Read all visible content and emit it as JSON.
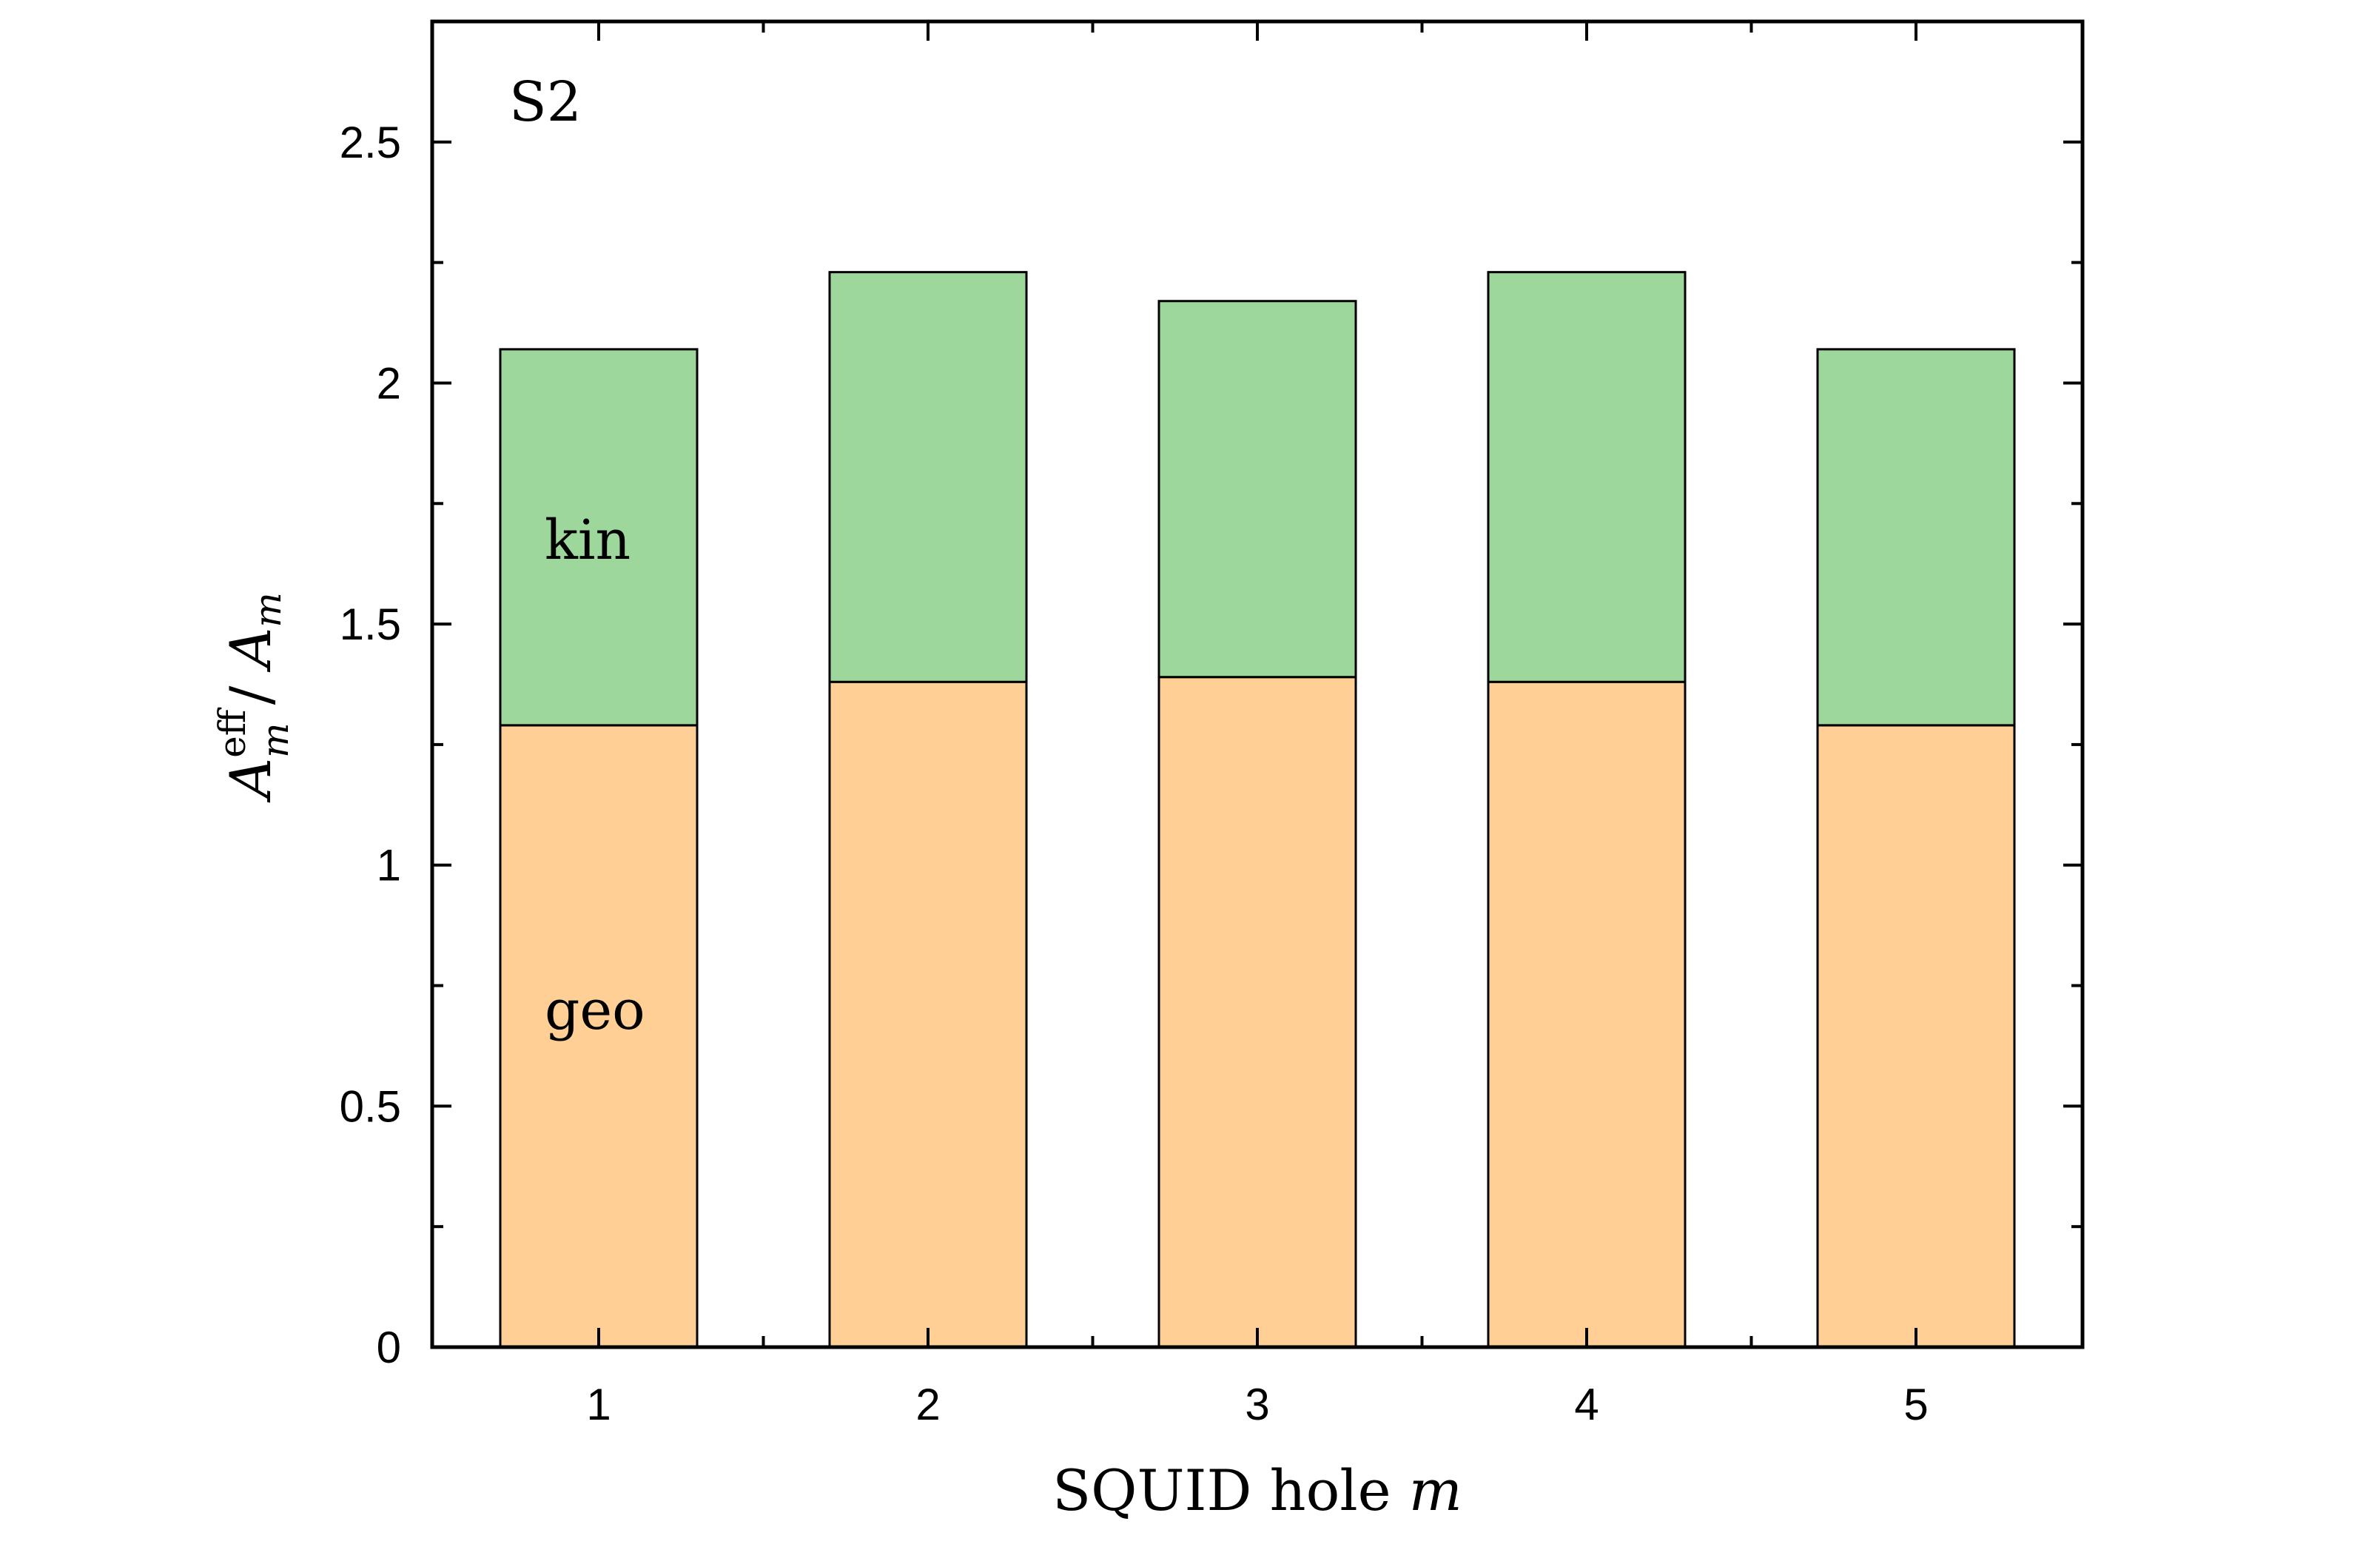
{
  "chart_data": {
    "type": "bar",
    "stacked": true,
    "panel_label": "S2",
    "categories": [
      "1",
      "2",
      "3",
      "4",
      "5"
    ],
    "series": [
      {
        "name": "geo",
        "values": [
          1.29,
          1.38,
          1.39,
          1.38,
          1.29
        ],
        "color": "#FFCF96"
      },
      {
        "name": "kin",
        "values": [
          0.78,
          0.85,
          0.78,
          0.85,
          0.78
        ],
        "color": "#9ED79B"
      }
    ],
    "totals": [
      2.07,
      2.23,
      2.17,
      2.23,
      2.07
    ],
    "xlabel": "SQUID hole m",
    "xlabel_text": "SQUID hole ",
    "xlabel_var": "m",
    "ylabel": "A_m^eff / A_m",
    "ylabel_parts": {
      "A": "A",
      "sub": "m",
      "sup": "eff",
      "sep": " / "
    },
    "ylim": [
      0,
      2.75
    ],
    "yticks": [
      0,
      0.5,
      1,
      1.5,
      2,
      2.5
    ],
    "ytick_labels": [
      "0",
      "0.5",
      "1",
      "1.5",
      "2",
      "2.5"
    ],
    "grid": false,
    "legend": "none"
  }
}
